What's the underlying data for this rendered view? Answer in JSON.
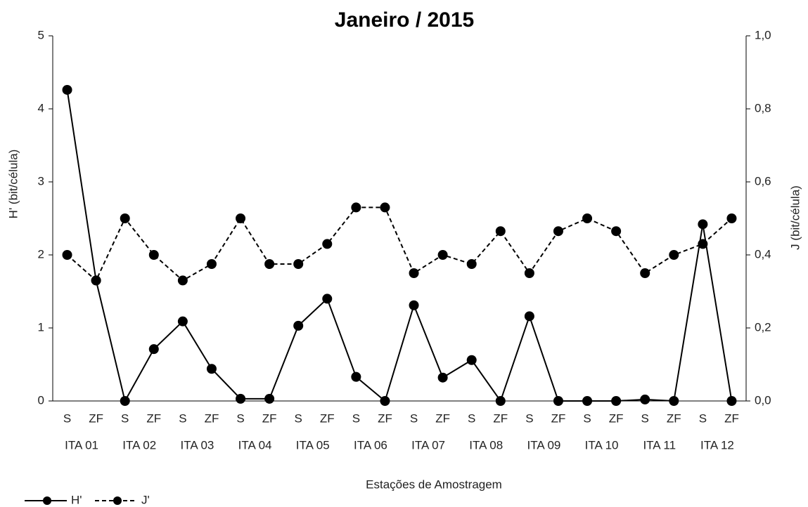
{
  "chart_data": {
    "type": "line",
    "title": "Janeiro / 2015",
    "x_label": "Estações de Amostragem",
    "y_label": "H' (bit/célula)",
    "y2_label": "J (bit/célula)",
    "categories": [
      "S",
      "ZF",
      "S",
      "ZF",
      "S",
      "ZF",
      "S",
      "ZF",
      "S",
      "ZF",
      "S",
      "ZF",
      "S",
      "ZF",
      "S",
      "ZF",
      "S",
      "ZF",
      "S",
      "ZF",
      "S",
      "ZF",
      "S",
      "ZF"
    ],
    "groups": [
      "ITA 01",
      "ITA 02",
      "ITA 03",
      "ITA 04",
      "ITA 05",
      "ITA 06",
      "ITA 07",
      "ITA 08",
      "ITA 09",
      "ITA 10",
      "ITA 11",
      "ITA 12"
    ],
    "ylim": [
      0,
      5
    ],
    "yticks": [
      0,
      1,
      2,
      3,
      4,
      5
    ],
    "y2lim": [
      0,
      1
    ],
    "y2ticks": [
      {
        "value": 0,
        "label": "0,0"
      },
      {
        "value": 0.2,
        "label": "0,2"
      },
      {
        "value": 0.4,
        "label": "0,4"
      },
      {
        "value": 0.6,
        "label": "0,6"
      },
      {
        "value": 0.8,
        "label": "0,8"
      },
      {
        "value": 1,
        "label": "1,0"
      }
    ],
    "series": [
      {
        "name": "H'",
        "color": "#000000",
        "dash": false,
        "values": [
          4.26,
          1.65,
          0,
          0.71,
          1.09,
          0.44,
          0.03,
          0.03,
          1.03,
          1.4,
          0.33,
          0,
          1.31,
          0.32,
          0.56,
          0,
          1.16,
          0,
          0,
          0,
          0.02,
          0,
          2.42,
          0
        ]
      },
      {
        "name": "J'",
        "color": "#000000",
        "dash": true,
        "axis": "y2",
        "values": [
          0.4,
          0.33,
          0.5,
          0.4,
          0.33,
          0.375,
          0.5,
          0.375,
          0.375,
          0.43,
          0.53,
          0.53,
          0.35,
          0.4,
          0.375,
          0.465,
          0.35,
          0.465,
          0.5,
          0.465,
          0.35,
          0.4,
          0.43,
          0.5
        ]
      }
    ]
  }
}
